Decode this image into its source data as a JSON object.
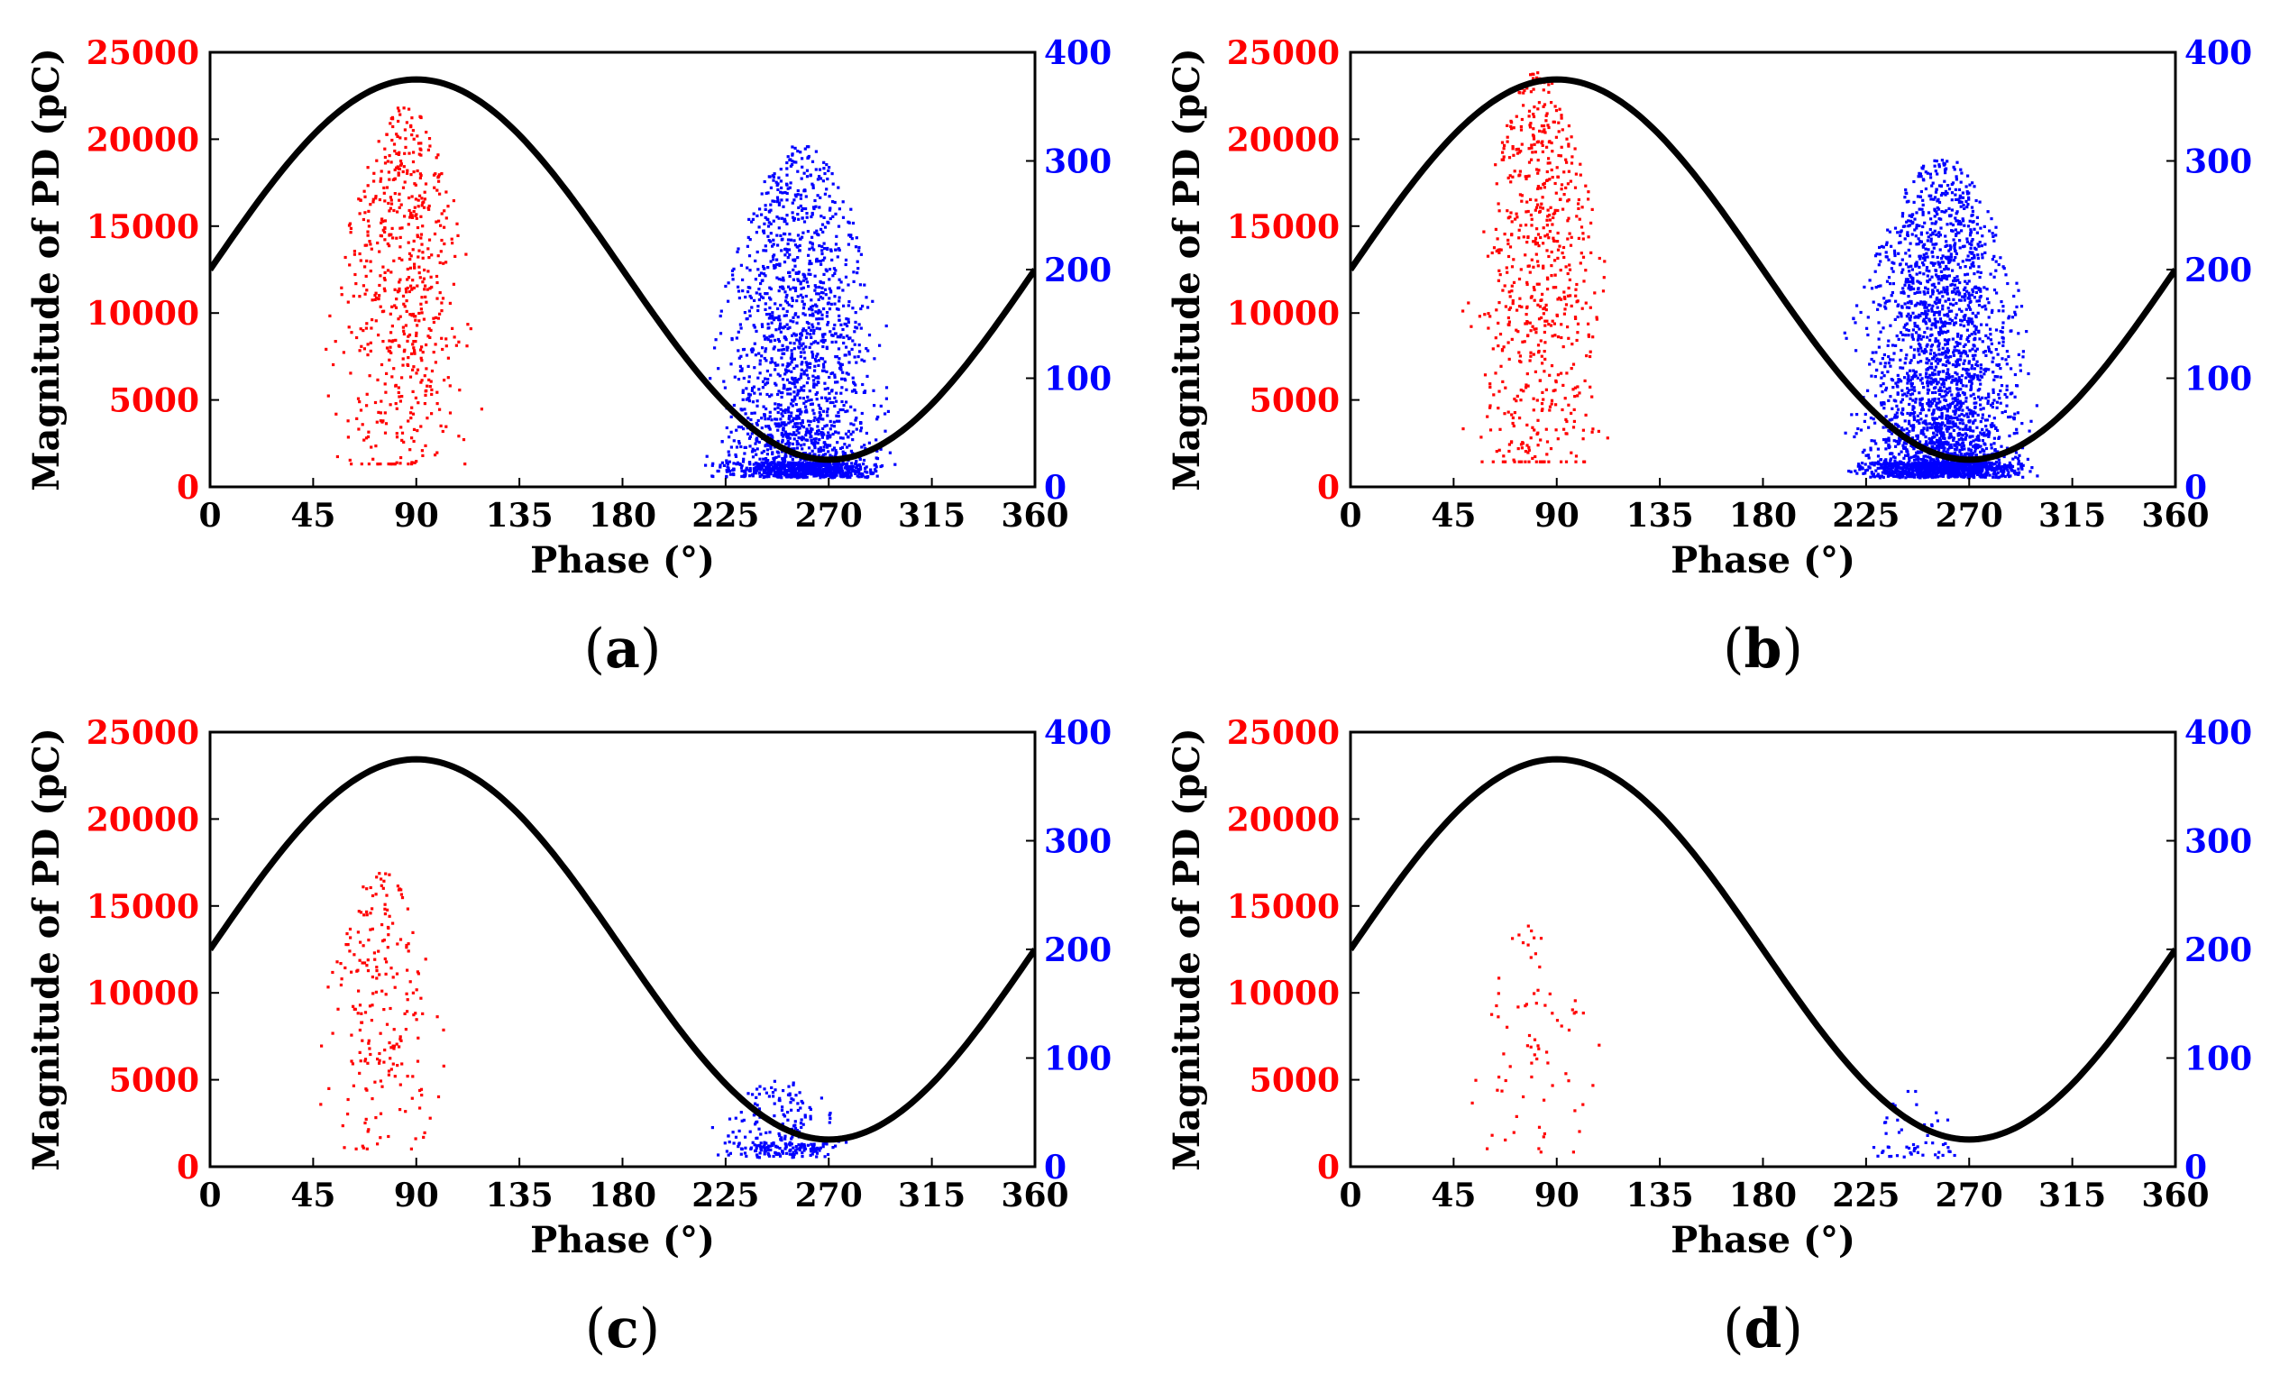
{
  "chart_data": [
    {
      "type": "scatter",
      "panel_label": "a",
      "xlabel": "Phase (°)",
      "ylabel": "Magnitude of PD (pC)",
      "xlim": [
        0,
        360
      ],
      "x_ticks": [
        "0",
        "45",
        "90",
        "135",
        "180",
        "225",
        "270",
        "315",
        "360"
      ],
      "ylim_left": [
        0,
        25000
      ],
      "y_ticks_left": [
        "0",
        "5000",
        "10000",
        "15000",
        "20000",
        "25000"
      ],
      "ylim_right": [
        0,
        400
      ],
      "y_ticks_right": [
        "0",
        "100",
        "200",
        "300",
        "400"
      ],
      "curve": {
        "type": "sine",
        "offset": 200,
        "amplitude": 175,
        "color": "#000000"
      },
      "series": [
        {
          "axis": "left",
          "color": "#ff0000",
          "cluster": {
            "phase_min": 28,
            "phase_max": 125,
            "peak_phase": 85,
            "max_value": 22000,
            "count": 600
          }
        },
        {
          "axis": "right",
          "color": "#0000ff",
          "cluster": {
            "phase_min": 195,
            "phase_max": 312,
            "peak_phase": 258,
            "max_value": 315,
            "count": 2200
          }
        }
      ]
    },
    {
      "type": "scatter",
      "panel_label": "b",
      "xlabel": "Phase (°)",
      "ylabel": "Magnitude of PD (pC)",
      "xlim": [
        0,
        360
      ],
      "x_ticks": [
        "0",
        "45",
        "90",
        "135",
        "180",
        "225",
        "270",
        "315",
        "360"
      ],
      "ylim_left": [
        0,
        25000
      ],
      "y_ticks_left": [
        "0",
        "5000",
        "10000",
        "15000",
        "20000",
        "25000"
      ],
      "ylim_right": [
        0,
        400
      ],
      "y_ticks_right": [
        "0",
        "100",
        "200",
        "300",
        "400"
      ],
      "curve": {
        "type": "sine",
        "offset": 200,
        "amplitude": 175,
        "color": "#000000"
      },
      "series": [
        {
          "axis": "left",
          "color": "#ff0000",
          "cluster": {
            "phase_min": 28,
            "phase_max": 120,
            "peak_phase": 82,
            "max_value": 24000,
            "count": 650
          }
        },
        {
          "axis": "right",
          "color": "#0000ff",
          "cluster": {
            "phase_min": 200,
            "phase_max": 318,
            "peak_phase": 258,
            "max_value": 305,
            "count": 3000
          }
        }
      ]
    },
    {
      "type": "scatter",
      "panel_label": "c",
      "xlabel": "Phase (°)",
      "ylabel": "Magnitude of PD (pC)",
      "xlim": [
        0,
        360
      ],
      "x_ticks": [
        "0",
        "45",
        "90",
        "135",
        "180",
        "225",
        "270",
        "315",
        "360"
      ],
      "ylim_left": [
        0,
        25000
      ],
      "y_ticks_left": [
        "0",
        "5000",
        "10000",
        "15000",
        "20000",
        "25000"
      ],
      "ylim_right": [
        0,
        400
      ],
      "y_ticks_right": [
        "0",
        "100",
        "200",
        "300",
        "400"
      ],
      "curve": {
        "type": "sine",
        "offset": 200,
        "amplitude": 175,
        "color": "#000000"
      },
      "series": [
        {
          "axis": "left",
          "color": "#ff0000",
          "cluster": {
            "phase_min": 25,
            "phase_max": 110,
            "peak_phase": 75,
            "max_value": 17000,
            "count": 220
          }
        },
        {
          "axis": "right",
          "color": "#0000ff",
          "cluster": {
            "phase_min": 200,
            "phase_max": 290,
            "peak_phase": 250,
            "max_value": 80,
            "count": 260
          }
        }
      ]
    },
    {
      "type": "scatter",
      "panel_label": "d",
      "xlabel": "Phase (°)",
      "ylabel": "Magnitude of PD (pC)",
      "xlim": [
        0,
        360
      ],
      "x_ticks": [
        "0",
        "45",
        "90",
        "135",
        "180",
        "225",
        "270",
        "315",
        "360"
      ],
      "ylim_left": [
        0,
        25000
      ],
      "y_ticks_left": [
        "0",
        "5000",
        "10000",
        "15000",
        "20000",
        "25000"
      ],
      "ylim_right": [
        0,
        400
      ],
      "y_ticks_right": [
        "0",
        "100",
        "200",
        "300",
        "400"
      ],
      "curve": {
        "type": "sine",
        "offset": 200,
        "amplitude": 175,
        "color": "#000000"
      },
      "series": [
        {
          "axis": "left",
          "color": "#ff0000",
          "cluster": {
            "phase_min": 25,
            "phase_max": 118,
            "peak_phase": 78,
            "max_value": 14000,
            "count": 75
          }
        },
        {
          "axis": "right",
          "color": "#0000ff",
          "cluster": {
            "phase_min": 210,
            "phase_max": 275,
            "peak_phase": 245,
            "max_value": 70,
            "count": 55
          }
        }
      ]
    }
  ]
}
